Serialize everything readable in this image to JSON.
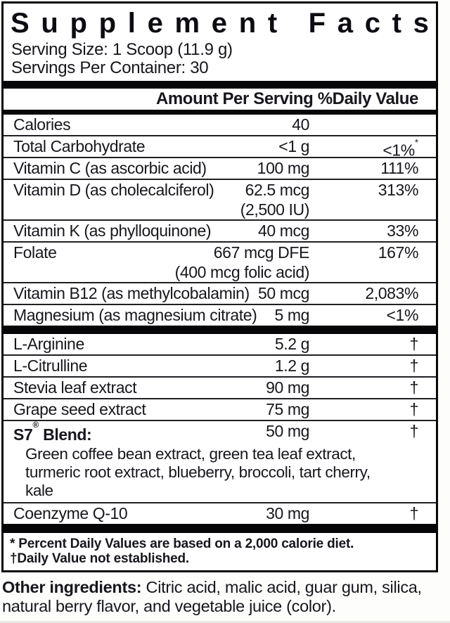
{
  "title": "Supplement Facts",
  "serving": {
    "size": "Serving Size: 1 Scoop (11.9 g)",
    "per_container": "Servings Per Container: 30"
  },
  "columns_header": "Amount Per Serving %Daily Value",
  "rows": [
    {
      "name": "Calories",
      "amount": "40",
      "dv": ""
    },
    {
      "name": "Total Carbohydrate",
      "amount": "<1 g",
      "dv": "<1%",
      "dv_sup": "*"
    },
    {
      "name": "Vitamin C (as ascorbic acid)",
      "amount": "100 mg",
      "dv": "111%"
    },
    {
      "name": "Vitamin D (as cholecalciferol)",
      "amount": "62.5 mcg",
      "amount2": "(2,500 IU)",
      "dv": "313%"
    },
    {
      "name": "Vitamin K (as phylloquinone)",
      "amount": "40 mcg",
      "dv": "33%"
    },
    {
      "name": "Folate",
      "amount": "667 mcg DFE",
      "amount2": "(400 mcg folic acid)",
      "dv": "167%"
    },
    {
      "name": "Vitamin B12 (as methylcobalamin)",
      "amount": "50 mcg",
      "dv": "2,083%"
    },
    {
      "name": "Magnesium (as magnesium citrate)",
      "amount": "5 mg",
      "dv": "<1%",
      "thick_after": true
    },
    {
      "name": "L-Arginine",
      "amount": "5.2 g",
      "dv": "†"
    },
    {
      "name": "L-Citrulline",
      "amount": "1.2 g",
      "dv": "†"
    },
    {
      "name": "Stevia leaf extract",
      "amount": "90 mg",
      "dv": "†"
    },
    {
      "name": "Grape seed extract",
      "amount": "75 mg",
      "dv": "†"
    },
    {
      "name": "S7",
      "name_sup": "®",
      "name_after": " Blend:",
      "bold": true,
      "amount": "50 mg",
      "dv": "†",
      "sub": "Green coffee bean extract, green tea leaf extract, turmeric root extract, blueberry, broccoli, tart cherry, kale"
    },
    {
      "name": "Coenzyme Q-10",
      "amount": "30 mg",
      "dv": "†",
      "thick_after": true
    }
  ],
  "footnotes": [
    "* Percent Daily Values are based on a 2,000 calorie diet.",
    "†Daily Value not established."
  ],
  "other_ingredients": {
    "label": "Other ingredients:",
    "text": " Citric acid, malic acid, guar gum, silica, natural berry flavor, and vegetable juice (color)."
  }
}
